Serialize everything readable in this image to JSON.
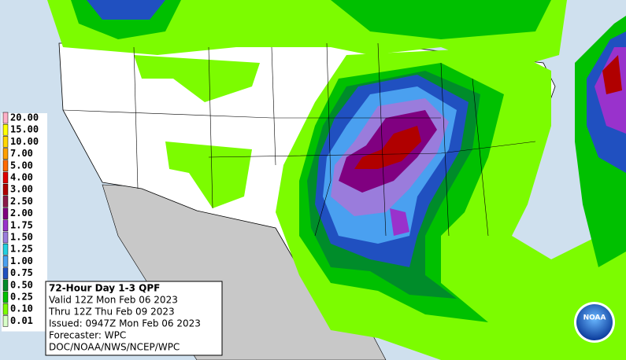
{
  "map": {
    "title": "72-Hour Day 1-3 QPF",
    "valid": "Valid 12Z Mon Feb 06 2023",
    "thru": "Thru 12Z Thu Feb 09 2023",
    "issued": "Issued: 0947Z Mon Feb 06 2023",
    "forecaster": "Forecaster: WPC",
    "agency": "DOC/NOAA/NWS/NCEP/WPC",
    "logo": "NOAA",
    "legend": [
      {
        "label": "20.00",
        "color": "#ffb0c8"
      },
      {
        "label": "15.00",
        "color": "#ffff00"
      },
      {
        "label": "10.00",
        "color": "#ffd700"
      },
      {
        "label": "7.00",
        "color": "#ffa000"
      },
      {
        "label": "5.00",
        "color": "#ff6a00"
      },
      {
        "label": "4.00",
        "color": "#e00000"
      },
      {
        "label": "3.00",
        "color": "#b00000"
      },
      {
        "label": "2.50",
        "color": "#8b1a4a"
      },
      {
        "label": "2.00",
        "color": "#800080"
      },
      {
        "label": "1.75",
        "color": "#9932cc"
      },
      {
        "label": "1.50",
        "color": "#9a7cdc"
      },
      {
        "label": "1.25",
        "color": "#22d0e0"
      },
      {
        "label": "1.00",
        "color": "#4aa0f0"
      },
      {
        "label": "0.75",
        "color": "#2050c0"
      },
      {
        "label": "0.50",
        "color": "#008c2a"
      },
      {
        "label": "0.25",
        "color": "#00c000"
      },
      {
        "label": "0.10",
        "color": "#7cfc00"
      },
      {
        "label": "0.01",
        "color": "#d8ffc8"
      }
    ]
  }
}
